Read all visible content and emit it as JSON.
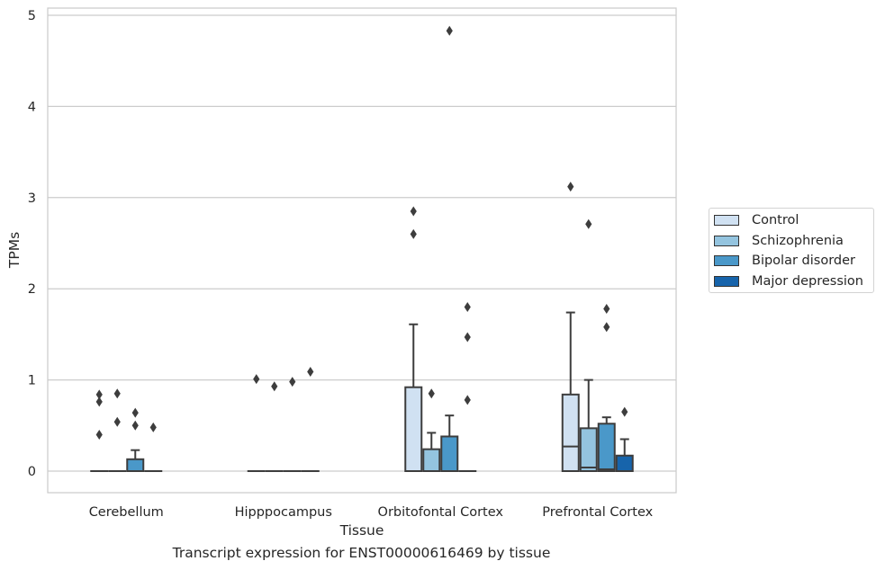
{
  "chart_data": {
    "type": "box",
    "caption": "Transcript expression for ENST00000616469 by tissue",
    "xlabel": "Tissue",
    "ylabel": "TPMs",
    "ylim": [
      -0.23,
      5.08
    ],
    "yticks": [
      "0",
      "1",
      "2",
      "3",
      "4",
      "5"
    ],
    "grid": true,
    "legend_position": "outside-right",
    "categories": [
      "Cerebellum",
      "Hipppocampus",
      "Orbitofontal Cortex",
      "Prefrontal Cortex"
    ],
    "series": [
      {
        "name": "Control",
        "color": "#d0e1f2",
        "boxes": [
          {
            "q1": 0,
            "median": 0,
            "q3": 0,
            "whisker_low": 0,
            "whisker_high": 0,
            "outliers": [
              0.84,
              0.76,
              0.4
            ]
          },
          {
            "q1": 0,
            "median": 0,
            "q3": 0,
            "whisker_low": 0,
            "whisker_high": 0,
            "outliers": [
              1.01
            ]
          },
          {
            "q1": 0,
            "median": 0,
            "q3": 0.92,
            "whisker_low": 0,
            "whisker_high": 1.61,
            "outliers": [
              2.85,
              2.6
            ]
          },
          {
            "q1": 0,
            "median": 0.27,
            "q3": 0.84,
            "whisker_low": 0,
            "whisker_high": 1.74,
            "outliers": [
              3.12
            ]
          }
        ]
      },
      {
        "name": "Schizophrenia",
        "color": "#94c4df",
        "boxes": [
          {
            "q1": 0,
            "median": 0,
            "q3": 0,
            "whisker_low": 0,
            "whisker_high": 0,
            "outliers": [
              0.85,
              0.54
            ]
          },
          {
            "q1": 0,
            "median": 0,
            "q3": 0,
            "whisker_low": 0,
            "whisker_high": 0,
            "outliers": [
              0.93
            ]
          },
          {
            "q1": 0,
            "median": 0,
            "q3": 0.24,
            "whisker_low": 0,
            "whisker_high": 0.42,
            "outliers": [
              0.85
            ]
          },
          {
            "q1": 0,
            "median": 0.04,
            "q3": 0.47,
            "whisker_low": 0,
            "whisker_high": 1.0,
            "outliers": [
              2.71
            ]
          }
        ]
      },
      {
        "name": "Bipolar disorder",
        "color": "#4a98c9",
        "boxes": [
          {
            "q1": 0,
            "median": 0,
            "q3": 0.13,
            "whisker_low": 0,
            "whisker_high": 0.23,
            "outliers": [
              0.64,
              0.5
            ]
          },
          {
            "q1": 0,
            "median": 0,
            "q3": 0,
            "whisker_low": 0,
            "whisker_high": 0,
            "outliers": [
              0.98
            ]
          },
          {
            "q1": 0,
            "median": 0,
            "q3": 0.38,
            "whisker_low": 0,
            "whisker_high": 0.61,
            "outliers": [
              4.83
            ]
          },
          {
            "q1": 0,
            "median": 0.02,
            "q3": 0.52,
            "whisker_low": 0,
            "whisker_high": 0.59,
            "outliers": [
              1.78,
              1.58
            ]
          }
        ]
      },
      {
        "name": "Major depression",
        "color": "#1764ab",
        "boxes": [
          {
            "q1": 0,
            "median": 0,
            "q3": 0,
            "whisker_low": 0,
            "whisker_high": 0,
            "outliers": [
              0.48
            ]
          },
          {
            "q1": 0,
            "median": 0,
            "q3": 0,
            "whisker_low": 0,
            "whisker_high": 0,
            "outliers": [
              1.09
            ]
          },
          {
            "q1": 0,
            "median": 0,
            "q3": 0,
            "whisker_low": 0,
            "whisker_high": 0,
            "outliers": [
              1.8,
              1.47,
              0.78
            ]
          },
          {
            "q1": 0,
            "median": 0,
            "q3": 0.17,
            "whisker_low": 0,
            "whisker_high": 0.35,
            "outliers": [
              0.65
            ]
          }
        ]
      }
    ]
  }
}
